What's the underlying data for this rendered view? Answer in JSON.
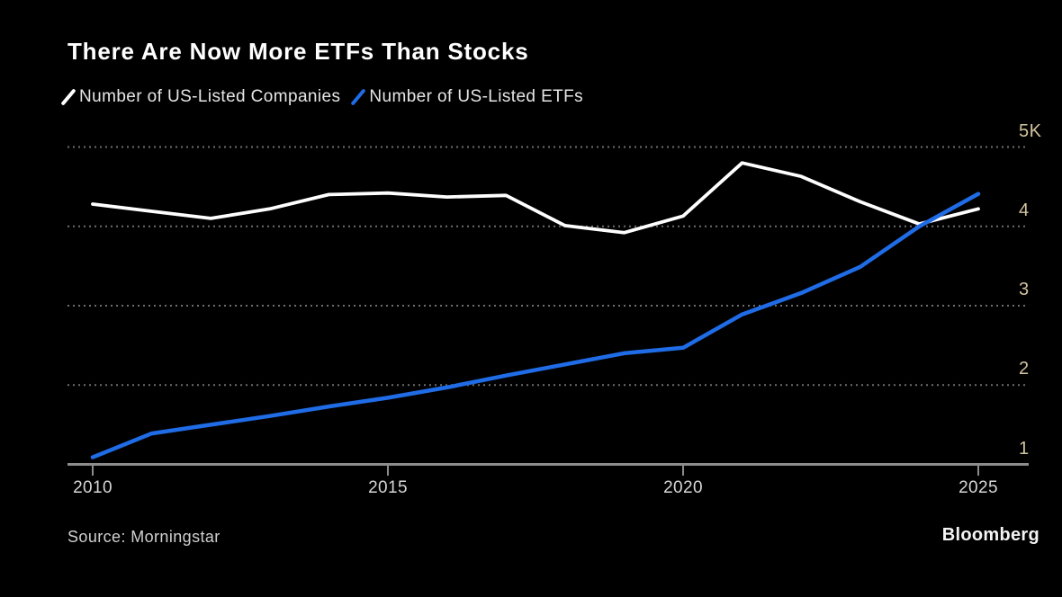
{
  "header": {
    "title": "There Are Now More ETFs Than Stocks"
  },
  "legend": [
    {
      "label": "Number of US-Listed Companies",
      "color": "#ffffff"
    },
    {
      "label": "Number of US-Listed ETFs",
      "color": "#1f6ce6"
    }
  ],
  "footer": {
    "source": "Source: Morningstar",
    "brand": "Bloomberg"
  },
  "chart_data": {
    "type": "line",
    "title": "There Are Now More ETFs Than Stocks",
    "unit": "thousands",
    "x": [
      2010,
      2011,
      2012,
      2013,
      2014,
      2015,
      2016,
      2017,
      2018,
      2019,
      2020,
      2021,
      2022,
      2023,
      2024,
      2025
    ],
    "series": [
      {
        "name": "Number of US-Listed Companies",
        "color": "#ffffff",
        "values": [
          4.28,
          4.19,
          4.1,
          4.22,
          4.4,
          4.42,
          4.37,
          4.39,
          4.01,
          3.92,
          4.13,
          4.8,
          4.63,
          4.31,
          4.03,
          4.22
        ]
      },
      {
        "name": "Number of US-Listed ETFs",
        "color": "#1f6ce6",
        "values": [
          1.09,
          1.39,
          1.5,
          1.61,
          1.73,
          1.84,
          1.97,
          2.12,
          2.26,
          2.4,
          2.47,
          2.89,
          3.16,
          3.49,
          4.0,
          4.41
        ]
      }
    ],
    "y_ticks": [
      {
        "value": 5,
        "label": "5K"
      },
      {
        "value": 4,
        "label": "4"
      },
      {
        "value": 3,
        "label": "3"
      },
      {
        "value": 2,
        "label": "2"
      },
      {
        "value": 1,
        "label": "1"
      }
    ],
    "x_ticks": [
      {
        "value": 2010,
        "label": "2010"
      },
      {
        "value": 2015,
        "label": "2015"
      },
      {
        "value": 2020,
        "label": "2020"
      },
      {
        "value": 2025,
        "label": "2025"
      }
    ],
    "ylim": [
      1,
      5.3
    ],
    "grid": "horizontal-dotted",
    "legend_position": "top",
    "colors": {
      "background": "#000000",
      "grid": "#6e6e6e",
      "axis": "#8c8c8c",
      "y_tick_text": "#d2c49e",
      "x_tick_text": "#d6d6d6"
    }
  }
}
